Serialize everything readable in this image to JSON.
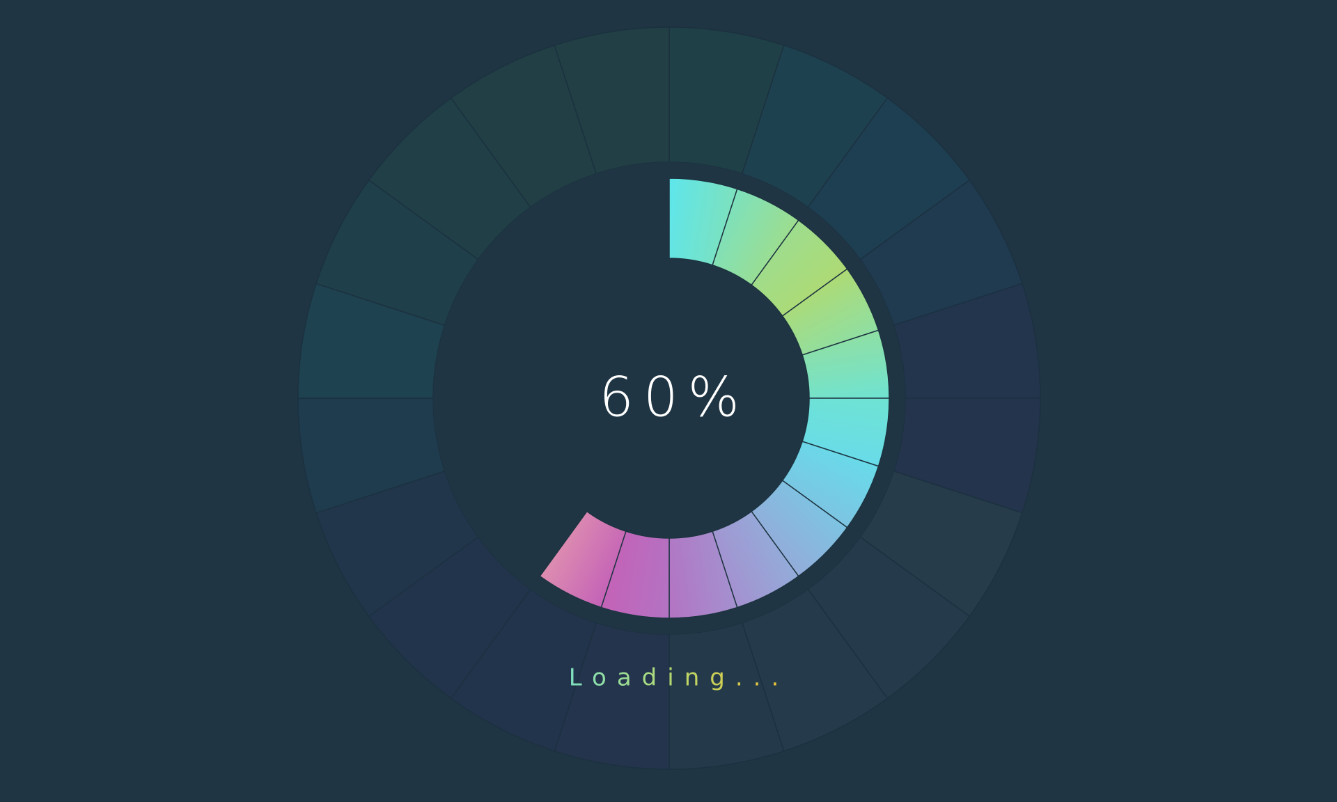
{
  "progress": {
    "value": 60,
    "label": "60%"
  },
  "status": "Loading..."
}
